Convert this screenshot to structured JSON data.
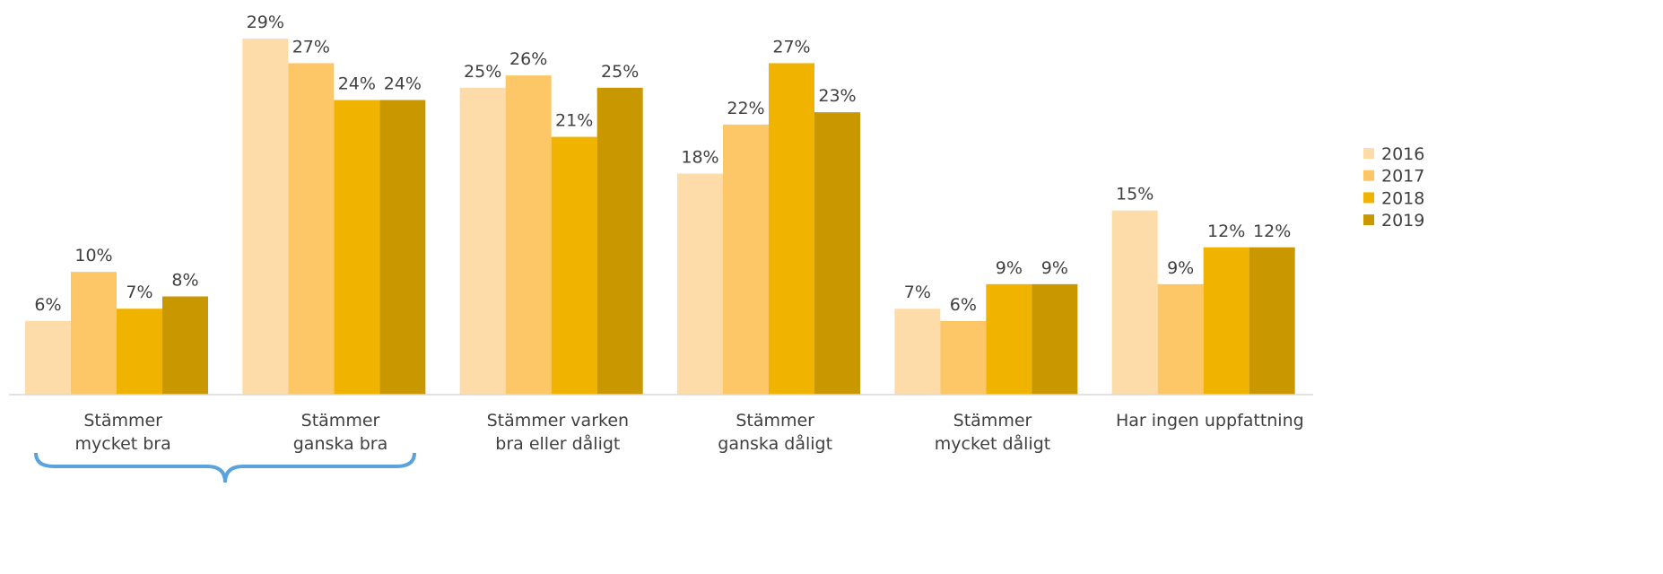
{
  "chart_data": {
    "type": "bar",
    "categories": [
      "Stämmer\nmycket bra",
      "Stämmer\nganska bra",
      "Stämmer varken\nbra eller dåligt",
      "Stämmer\nganska dåligt",
      "Stämmer\nmycket dåligt",
      "Har ingen uppfattning"
    ],
    "series": [
      {
        "name": "2016",
        "color": "#fddcaa",
        "values": [
          6,
          29,
          25,
          18,
          7,
          15
        ],
        "value_labels": [
          "6%",
          "29%",
          "25%",
          "18%",
          "7%",
          "15%"
        ]
      },
      {
        "name": "2017",
        "color": "#fdc666",
        "values": [
          10,
          27,
          26,
          22,
          6,
          9
        ],
        "value_labels": [
          "10%",
          "27%",
          "26%",
          "22%",
          "6%",
          "9%"
        ]
      },
      {
        "name": "2018",
        "color": "#f0b400",
        "values": [
          7,
          24,
          21,
          27,
          9,
          12
        ],
        "value_labels": [
          "7%",
          "24%",
          "21%",
          "27%",
          "9%",
          "12%"
        ]
      },
      {
        "name": "2019",
        "color": "#c99700",
        "values": [
          8,
          24,
          25,
          23,
          9,
          12
        ],
        "value_labels": [
          "8%",
          "24%",
          "25%",
          "23%",
          "9%",
          "12%"
        ]
      }
    ],
    "ylim": [
      0,
      32
    ],
    "legend": "right"
  }
}
